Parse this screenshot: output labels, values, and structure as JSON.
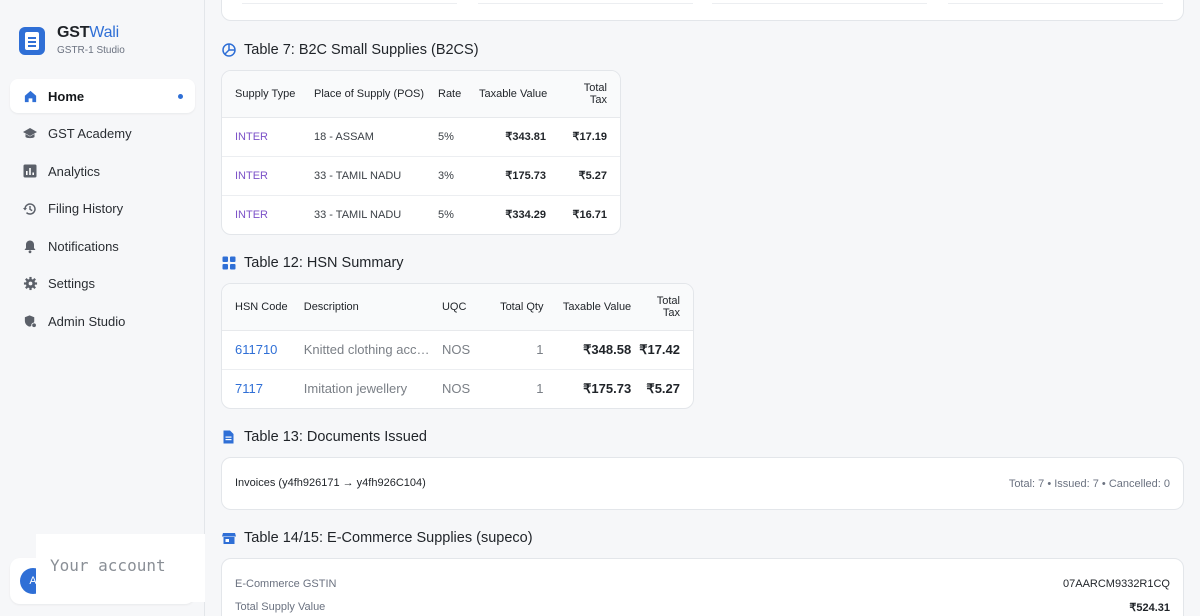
{
  "brand": {
    "name_a": "GST",
    "name_b": "Wali",
    "subtitle": "GSTR-1 Studio"
  },
  "sidebar": {
    "items": [
      {
        "label": "Home",
        "icon": "home-icon",
        "active": true
      },
      {
        "label": "GST Academy",
        "icon": "graduation-cap-icon"
      },
      {
        "label": "Analytics",
        "icon": "bar-chart-icon"
      },
      {
        "label": "Filing History",
        "icon": "history-icon"
      },
      {
        "label": "Notifications",
        "icon": "bell-icon"
      },
      {
        "label": "Settings",
        "icon": "gear-icon"
      },
      {
        "label": "Admin Studio",
        "icon": "admin-shield-icon"
      }
    ]
  },
  "account": {
    "avatar_initial": "A",
    "tooltip": "Your account"
  },
  "b2cs": {
    "title": "Table 7: B2C Small Supplies (B2CS)",
    "headers": [
      "Supply Type",
      "Place of Supply (POS)",
      "Rate",
      "Taxable Value",
      "Total Tax"
    ],
    "rows": [
      [
        "INTER",
        "18 - ASSAM",
        "5%",
        "₹343.81",
        "₹17.19"
      ],
      [
        "INTER",
        "33 - TAMIL NADU",
        "3%",
        "₹175.73",
        "₹5.27"
      ],
      [
        "INTER",
        "33 - TAMIL NADU",
        "5%",
        "₹334.29",
        "₹16.71"
      ]
    ]
  },
  "hsn": {
    "title": "Table 12: HSN Summary",
    "headers": [
      "HSN Code",
      "Description",
      "UQC",
      "Total Qty",
      "Taxable Value",
      "Total Tax"
    ],
    "rows": [
      [
        "611710",
        "Knitted clothing acc…",
        "NOS",
        "1",
        "₹348.58",
        "₹17.42"
      ],
      [
        "7117",
        "Imitation jewellery",
        "NOS",
        "1",
        "₹175.73",
        "₹5.27"
      ]
    ]
  },
  "docs": {
    "title": "Table 13: Documents Issued",
    "left": "Invoices (y4fh926171 → y4fh926C104)",
    "right": "Total: 7 • Issued: 7 • Cancelled: 0"
  },
  "ecom": {
    "title": "Table 14/15: E-Commerce Supplies (supeco)",
    "gstin_label": "E-Commerce GSTIN",
    "gstin_value": "07AARCM9332R1CQ",
    "total_label": "Total Supply Value",
    "total_value": "₹524.31"
  },
  "colors": {
    "accent": "#2f6fd6",
    "inter": "#7c52c8"
  }
}
